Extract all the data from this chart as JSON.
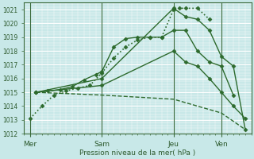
{
  "title": "",
  "xlabel": "Pression niveau de la mer( hPa )",
  "bg_color": "#c8e8e8",
  "grid_color": "#ffffff",
  "line_color": "#2d6a2d",
  "ylim": [
    1012,
    1021.5
  ],
  "yticks": [
    1012,
    1013,
    1014,
    1015,
    1016,
    1017,
    1018,
    1019,
    1020,
    1021
  ],
  "xtick_labels": [
    "Mer",
    "Sam",
    "Jeu",
    "Ven"
  ],
  "xtick_positions": [
    0,
    24,
    48,
    64
  ],
  "xlim": [
    -2,
    74
  ],
  "vlines": [
    0,
    24,
    48,
    64
  ],
  "series": [
    {
      "x": [
        0,
        4,
        8,
        12,
        16,
        20,
        24,
        28,
        32,
        36,
        40,
        44,
        48,
        50,
        52,
        56,
        60
      ],
      "y": [
        1013.1,
        1014.0,
        1014.8,
        1015.1,
        1015.3,
        1015.5,
        1016.4,
        1017.5,
        1018.3,
        1018.8,
        1019.0,
        1019.0,
        1021.0,
        1021.1,
        1021.1,
        1021.1,
        1020.3
      ],
      "linestyle": ":",
      "marker": "D",
      "markersize": 2.5,
      "linewidth": 1.2
    },
    {
      "x": [
        2,
        6,
        10,
        14,
        18,
        22,
        24,
        28,
        32,
        36,
        40,
        44,
        48,
        52,
        56,
        60,
        64,
        68
      ],
      "y": [
        1015.0,
        1015.1,
        1015.2,
        1015.4,
        1015.9,
        1016.3,
        1016.5,
        1018.3,
        1018.9,
        1019.0,
        1019.0,
        1019.0,
        1019.5,
        1019.5,
        1018.0,
        1017.2,
        1016.9,
        1014.8
      ],
      "linestyle": "-",
      "marker": "D",
      "markersize": 2.5,
      "linewidth": 1.0
    },
    {
      "x": [
        2,
        24,
        48,
        52,
        56,
        60,
        64,
        68,
        72
      ],
      "y": [
        1015.0,
        1016.0,
        1021.1,
        1020.5,
        1020.3,
        1019.5,
        1017.6,
        1016.9,
        1012.3
      ],
      "linestyle": "-",
      "marker": "D",
      "markersize": 2.5,
      "linewidth": 1.0
    },
    {
      "x": [
        2,
        24,
        48,
        52,
        56,
        60,
        64,
        68,
        72
      ],
      "y": [
        1015.0,
        1015.5,
        1018.0,
        1017.2,
        1016.9,
        1016.0,
        1015.0,
        1014.0,
        1013.1
      ],
      "linestyle": "-",
      "marker": "D",
      "markersize": 2.5,
      "linewidth": 1.0
    },
    {
      "x": [
        2,
        24,
        48,
        56,
        64,
        72
      ],
      "y": [
        1015.0,
        1014.8,
        1014.5,
        1014.0,
        1013.5,
        1012.3
      ],
      "linestyle": "--",
      "marker": null,
      "markersize": 0,
      "linewidth": 1.0
    }
  ]
}
